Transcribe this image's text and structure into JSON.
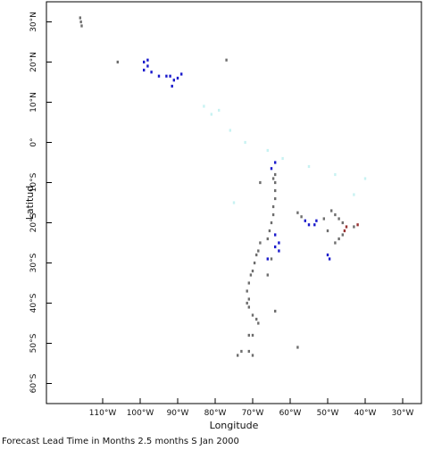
{
  "map": {
    "x_axis_title": "Longitude",
    "y_axis_title": "Latitud",
    "lon_range": [
      -125,
      -25
    ],
    "lat_range": [
      -65,
      35
    ],
    "lon_ticks": [
      {
        "value": -110,
        "label": "110°W"
      },
      {
        "value": -100,
        "label": "100°W"
      },
      {
        "value": -90,
        "label": "90°W"
      },
      {
        "value": -80,
        "label": "80°W"
      },
      {
        "value": -70,
        "label": "70°W"
      },
      {
        "value": -60,
        "label": "60°W"
      },
      {
        "value": -50,
        "label": "50°W"
      },
      {
        "value": -40,
        "label": "40°W"
      },
      {
        "value": -30,
        "label": "30°W"
      }
    ],
    "lat_ticks": [
      {
        "value": 30,
        "label": "30°N"
      },
      {
        "value": 20,
        "label": "20°N"
      },
      {
        "value": 10,
        "label": "10°N"
      },
      {
        "value": 0,
        "label": "0°"
      },
      {
        "value": -10,
        "label": "10°S"
      },
      {
        "value": -20,
        "label": "20°S"
      },
      {
        "value": -30,
        "label": "30°S"
      },
      {
        "value": -40,
        "label": "40°S"
      },
      {
        "value": -50,
        "label": "50°S"
      },
      {
        "value": -60,
        "label": "60°S"
      }
    ],
    "colors": {
      "gray": "#6e6e6e",
      "blue": "#1a1acc",
      "red": "#993333",
      "cyan": "#c8f2f2"
    },
    "points": [
      {
        "lon": -116,
        "lat": 31,
        "c": "gray"
      },
      {
        "lon": -115.8,
        "lat": 30,
        "c": "gray"
      },
      {
        "lon": -115.6,
        "lat": 29,
        "c": "gray"
      },
      {
        "lon": -106,
        "lat": 20,
        "c": "gray"
      },
      {
        "lon": -77,
        "lat": 20.5,
        "c": "gray"
      },
      {
        "lon": -99,
        "lat": 20,
        "c": "blue"
      },
      {
        "lon": -98,
        "lat": 19,
        "c": "blue"
      },
      {
        "lon": -99,
        "lat": 18,
        "c": "blue"
      },
      {
        "lon": -97,
        "lat": 17.5,
        "c": "blue"
      },
      {
        "lon": -95,
        "lat": 16.5,
        "c": "blue"
      },
      {
        "lon": -93,
        "lat": 16.5,
        "c": "blue"
      },
      {
        "lon": -92,
        "lat": 16.5,
        "c": "blue"
      },
      {
        "lon": -91,
        "lat": 15.5,
        "c": "blue"
      },
      {
        "lon": -91.5,
        "lat": 14,
        "c": "blue"
      },
      {
        "lon": -90,
        "lat": 16,
        "c": "blue"
      },
      {
        "lon": -89,
        "lat": 17,
        "c": "blue"
      },
      {
        "lon": -98,
        "lat": 20.5,
        "c": "blue"
      },
      {
        "lon": -83,
        "lat": 9,
        "c": "cyan"
      },
      {
        "lon": -81,
        "lat": 7,
        "c": "cyan"
      },
      {
        "lon": -79,
        "lat": 8,
        "c": "cyan"
      },
      {
        "lon": -76,
        "lat": 3,
        "c": "cyan"
      },
      {
        "lon": -72,
        "lat": 0,
        "c": "cyan"
      },
      {
        "lon": -66,
        "lat": -2,
        "c": "cyan"
      },
      {
        "lon": -62,
        "lat": -4,
        "c": "cyan"
      },
      {
        "lon": -55,
        "lat": -6,
        "c": "cyan"
      },
      {
        "lon": -48,
        "lat": -8,
        "c": "cyan"
      },
      {
        "lon": -40,
        "lat": -9,
        "c": "cyan"
      },
      {
        "lon": -75,
        "lat": -15,
        "c": "cyan"
      },
      {
        "lon": -43,
        "lat": -13,
        "c": "cyan"
      },
      {
        "lon": -64,
        "lat": -5,
        "c": "blue"
      },
      {
        "lon": -65,
        "lat": -6.5,
        "c": "blue"
      },
      {
        "lon": -64.5,
        "lat": -9,
        "c": "gray"
      },
      {
        "lon": -68,
        "lat": -10,
        "c": "gray"
      },
      {
        "lon": -64,
        "lat": -8,
        "c": "gray"
      },
      {
        "lon": -64,
        "lat": -10,
        "c": "gray"
      },
      {
        "lon": -64,
        "lat": -12,
        "c": "gray"
      },
      {
        "lon": -64,
        "lat": -14,
        "c": "gray"
      },
      {
        "lon": -64.5,
        "lat": -16,
        "c": "gray"
      },
      {
        "lon": -64.5,
        "lat": -18,
        "c": "gray"
      },
      {
        "lon": -65,
        "lat": -20,
        "c": "gray"
      },
      {
        "lon": -65.5,
        "lat": -22,
        "c": "gray"
      },
      {
        "lon": -66,
        "lat": -24,
        "c": "gray"
      },
      {
        "lon": -64,
        "lat": -23,
        "c": "blue"
      },
      {
        "lon": -63,
        "lat": -25,
        "c": "blue"
      },
      {
        "lon": -63,
        "lat": -27,
        "c": "blue"
      },
      {
        "lon": -64,
        "lat": -26,
        "c": "blue"
      },
      {
        "lon": -68,
        "lat": -25,
        "c": "gray"
      },
      {
        "lon": -68.5,
        "lat": -27,
        "c": "gray"
      },
      {
        "lon": -66,
        "lat": -29,
        "c": "blue"
      },
      {
        "lon": -65,
        "lat": -29,
        "c": "gray"
      },
      {
        "lon": -69,
        "lat": -28,
        "c": "gray"
      },
      {
        "lon": -69.5,
        "lat": -30,
        "c": "gray"
      },
      {
        "lon": -70,
        "lat": -32,
        "c": "gray"
      },
      {
        "lon": -70.5,
        "lat": -33,
        "c": "gray"
      },
      {
        "lon": -71,
        "lat": -35,
        "c": "gray"
      },
      {
        "lon": -71.5,
        "lat": -37,
        "c": "gray"
      },
      {
        "lon": -71,
        "lat": -39,
        "c": "gray"
      },
      {
        "lon": -71.5,
        "lat": -40,
        "c": "gray"
      },
      {
        "lon": -71,
        "lat": -41,
        "c": "gray"
      },
      {
        "lon": -70,
        "lat": -43,
        "c": "gray"
      },
      {
        "lon": -69,
        "lat": -44,
        "c": "gray"
      },
      {
        "lon": -68.5,
        "lat": -45,
        "c": "gray"
      },
      {
        "lon": -66,
        "lat": -33,
        "c": "gray"
      },
      {
        "lon": -64,
        "lat": -42,
        "c": "gray"
      },
      {
        "lon": -70,
        "lat": -48,
        "c": "gray"
      },
      {
        "lon": -71,
        "lat": -48,
        "c": "gray"
      },
      {
        "lon": -73,
        "lat": -52,
        "c": "gray"
      },
      {
        "lon": -74,
        "lat": -53,
        "c": "gray"
      },
      {
        "lon": -70,
        "lat": -53,
        "c": "gray"
      },
      {
        "lon": -71,
        "lat": -52,
        "c": "gray"
      },
      {
        "lon": -58,
        "lat": -51,
        "c": "gray"
      },
      {
        "lon": -58,
        "lat": -17.5,
        "c": "gray"
      },
      {
        "lon": -57,
        "lat": -18.5,
        "c": "gray"
      },
      {
        "lon": -56,
        "lat": -19.5,
        "c": "blue"
      },
      {
        "lon": -55,
        "lat": -20.5,
        "c": "blue"
      },
      {
        "lon": -53,
        "lat": -19.5,
        "c": "blue"
      },
      {
        "lon": -53.5,
        "lat": -20.5,
        "c": "blue"
      },
      {
        "lon": -51,
        "lat": -19,
        "c": "gray"
      },
      {
        "lon": -50,
        "lat": -22,
        "c": "gray"
      },
      {
        "lon": -49,
        "lat": -17,
        "c": "gray"
      },
      {
        "lon": -48,
        "lat": -18,
        "c": "gray"
      },
      {
        "lon": -47,
        "lat": -19,
        "c": "gray"
      },
      {
        "lon": -46,
        "lat": -20,
        "c": "gray"
      },
      {
        "lon": -45,
        "lat": -21,
        "c": "red"
      },
      {
        "lon": -45.5,
        "lat": -22,
        "c": "red"
      },
      {
        "lon": -46,
        "lat": -23,
        "c": "gray"
      },
      {
        "lon": -47,
        "lat": -24,
        "c": "gray"
      },
      {
        "lon": -48,
        "lat": -25,
        "c": "gray"
      },
      {
        "lon": -42,
        "lat": -20.5,
        "c": "red"
      },
      {
        "lon": -43,
        "lat": -21,
        "c": "gray"
      },
      {
        "lon": -50,
        "lat": -28,
        "c": "blue"
      },
      {
        "lon": -49.5,
        "lat": -29,
        "c": "blue"
      }
    ]
  },
  "caption": "Forecast Lead Time in Months 2.5 months S Jan 2000"
}
